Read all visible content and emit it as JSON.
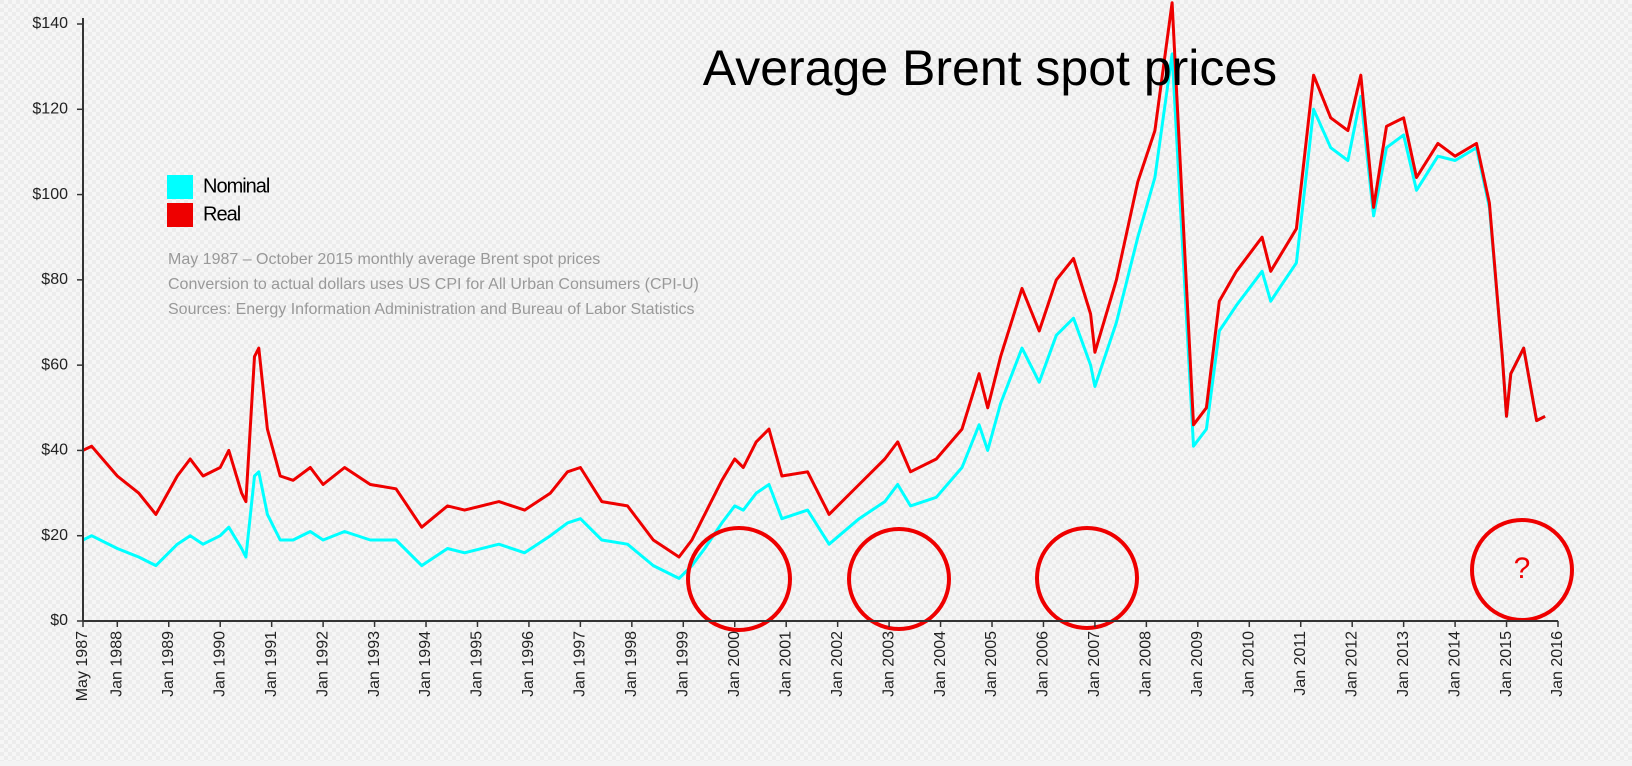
{
  "chart_data": {
    "type": "line",
    "title": "Average Brent spot prices",
    "notes": [
      "May 1987 – October 2015 monthly average Brent spot prices",
      "Conversion to actual dollars uses US CPI for All Urban Consumers (CPI-U)",
      "Sources: Energy Information Administration and Bureau of Labor Statistics"
    ],
    "annotation": "?",
    "x": [
      "1987-05",
      "1987-07",
      "1988-01",
      "1988-06",
      "1988-10",
      "1989-03",
      "1989-06",
      "1989-09",
      "1990-01",
      "1990-03",
      "1990-06",
      "1990-07",
      "1990-09",
      "1990-10",
      "1990-12",
      "1991-03",
      "1991-06",
      "1991-10",
      "1992-01",
      "1992-06",
      "1992-12",
      "1993-06",
      "1993-12",
      "1994-06",
      "1994-10",
      "1995-06",
      "1995-12",
      "1996-06",
      "1996-10",
      "1997-01",
      "1997-06",
      "1997-12",
      "1998-06",
      "1998-12",
      "1999-03",
      "1999-06",
      "1999-10",
      "2000-01",
      "2000-03",
      "2000-06",
      "2000-09",
      "2000-12",
      "2001-06",
      "2001-11",
      "2002-06",
      "2002-12",
      "2003-03",
      "2003-06",
      "2003-12",
      "2004-06",
      "2004-10",
      "2004-12",
      "2005-03",
      "2005-08",
      "2005-12",
      "2006-04",
      "2006-08",
      "2006-12",
      "2007-01",
      "2007-06",
      "2007-11",
      "2008-03",
      "2008-07",
      "2008-12",
      "2009-03",
      "2009-06",
      "2009-10",
      "2010-04",
      "2010-06",
      "2010-12",
      "2011-04",
      "2011-08",
      "2011-12",
      "2012-03",
      "2012-06",
      "2012-09",
      "2013-01",
      "2013-04",
      "2013-09",
      "2014-01",
      "2014-06",
      "2014-09",
      "2014-12",
      "2015-01",
      "2015-02",
      "2015-05",
      "2015-08",
      "2015-10"
    ],
    "series": [
      {
        "name": "Nominal",
        "color": "#00ffff",
        "values": [
          19,
          20,
          17,
          15,
          13,
          18,
          20,
          18,
          20,
          22,
          17,
          15,
          34,
          35,
          25,
          19,
          19,
          21,
          19,
          21,
          19,
          19,
          13,
          17,
          16,
          18,
          16,
          20,
          23,
          24,
          19,
          18,
          13,
          10,
          13,
          17,
          23,
          27,
          26,
          30,
          32,
          24,
          26,
          18,
          24,
          28,
          32,
          27,
          29,
          36,
          46,
          40,
          51,
          64,
          56,
          67,
          71,
          60,
          55,
          70,
          90,
          104,
          133,
          41,
          45,
          68,
          74,
          82,
          75,
          84,
          120,
          111,
          108,
          123,
          95,
          111,
          114,
          101,
          109,
          108,
          111,
          97,
          62,
          48,
          58,
          64,
          47,
          48
        ]
      },
      {
        "name": "Real",
        "color": "#ee0000",
        "values": [
          40,
          41,
          34,
          30,
          25,
          34,
          38,
          34,
          36,
          40,
          30,
          28,
          62,
          64,
          45,
          34,
          33,
          36,
          32,
          36,
          32,
          31,
          22,
          27,
          26,
          28,
          26,
          30,
          35,
          36,
          28,
          27,
          19,
          15,
          19,
          25,
          33,
          38,
          36,
          42,
          45,
          34,
          35,
          25,
          32,
          38,
          42,
          35,
          38,
          45,
          58,
          50,
          62,
          78,
          68,
          80,
          85,
          72,
          63,
          80,
          103,
          115,
          145,
          46,
          50,
          75,
          82,
          90,
          82,
          92,
          128,
          118,
          115,
          128,
          97,
          116,
          118,
          104,
          112,
          109,
          112,
          98,
          62,
          48,
          58,
          64,
          47,
          48
        ]
      }
    ],
    "xlim": [
      "1987-05",
      "2016-01"
    ],
    "xticks": [
      {
        "value": "1987-05",
        "label": "May 1987"
      },
      {
        "value": "1988-01",
        "label": "Jan 1988"
      },
      {
        "value": "1989-01",
        "label": "Jan 1989"
      },
      {
        "value": "1990-01",
        "label": "Jan 1990"
      },
      {
        "value": "1991-01",
        "label": "Jan 1991"
      },
      {
        "value": "1992-01",
        "label": "Jan 1992"
      },
      {
        "value": "1993-01",
        "label": "Jan 1993"
      },
      {
        "value": "1994-01",
        "label": "Jan 1994"
      },
      {
        "value": "1995-01",
        "label": "Jan 1995"
      },
      {
        "value": "1996-01",
        "label": "Jan 1996"
      },
      {
        "value": "1997-01",
        "label": "Jan 1997"
      },
      {
        "value": "1998-01",
        "label": "Jan 1998"
      },
      {
        "value": "1999-01",
        "label": "Jan 1999"
      },
      {
        "value": "2000-01",
        "label": "Jan 2000"
      },
      {
        "value": "2001-01",
        "label": "Jan 2001"
      },
      {
        "value": "2002-01",
        "label": "Jan 2002"
      },
      {
        "value": "2003-01",
        "label": "Jan 2003"
      },
      {
        "value": "2004-01",
        "label": "Jan 2004"
      },
      {
        "value": "2005-01",
        "label": "Jan 2005"
      },
      {
        "value": "2006-01",
        "label": "Jan 2006"
      },
      {
        "value": "2007-01",
        "label": "Jan 2007"
      },
      {
        "value": "2008-01",
        "label": "Jan 2008"
      },
      {
        "value": "2009-01",
        "label": "Jan 2009"
      },
      {
        "value": "2010-01",
        "label": "Jan 2010"
      },
      {
        "value": "2011-01",
        "label": "Jan 2011"
      },
      {
        "value": "2012-01",
        "label": "Jan 2012"
      },
      {
        "value": "2013-01",
        "label": "Jan 2013"
      },
      {
        "value": "2014-01",
        "label": "Jan 2014"
      },
      {
        "value": "2015-01",
        "label": "Jan 2015"
      },
      {
        "value": "2016-01",
        "label": "Jan 2016"
      }
    ],
    "ylim": [
      0,
      140
    ],
    "yticks": [
      {
        "value": 0,
        "label": "$0"
      },
      {
        "value": 20,
        "label": "$20"
      },
      {
        "value": 40,
        "label": "$40"
      },
      {
        "value": 60,
        "label": "$60"
      },
      {
        "value": 80,
        "label": "$80"
      },
      {
        "value": 100,
        "label": "$100"
      },
      {
        "value": 120,
        "label": "$120"
      },
      {
        "value": 140,
        "label": "$140"
      }
    ],
    "legend": "upper left"
  }
}
